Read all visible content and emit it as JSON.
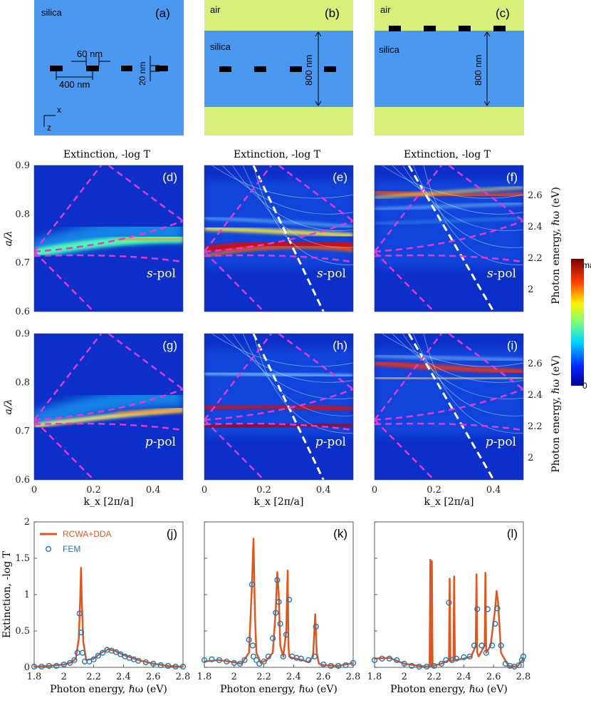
{
  "colors": {
    "silica": "#4a98f0",
    "air": "#d6f07a",
    "particle": "#000000",
    "map_bg": "#0b2fc8",
    "dash_magenta": "#e23ad6",
    "dash_white": "#ffffff",
    "rcwa": "#e0561f",
    "fem": "#1f77b4"
  },
  "schematics": {
    "a": {
      "label": "(a)",
      "medium": "silica",
      "dim_period": "400 nm",
      "dim_width": "60 nm",
      "dim_height": "20 nm",
      "axis_x": "x",
      "axis_z": "z"
    },
    "b": {
      "label": "(b)",
      "top": "air",
      "middle": "silica",
      "thickness": "800 nm"
    },
    "c": {
      "label": "(c)",
      "top": "air",
      "middle": "silica",
      "thickness": "800 nm"
    }
  },
  "maps": {
    "title": "Extinction, -log T",
    "ylabel": "a/λ",
    "xlabel": "k_x [2π/a]",
    "right_ylabel": "Photon energy, ℏω (eV)",
    "x_ticks": [
      "0",
      "0.2",
      "0.4"
    ],
    "y_ticks": [
      "0.6",
      "0.7",
      "0.8",
      "0.9"
    ],
    "energy_ticks": [
      "2",
      "2.2",
      "2.4",
      "2.6"
    ],
    "panels": [
      {
        "label": "(d)",
        "pol": "s-pol"
      },
      {
        "label": "(e)",
        "pol": "s-pol"
      },
      {
        "label": "(f)",
        "pol": "s-pol"
      },
      {
        "label": "(g)",
        "pol": "p-pol"
      },
      {
        "label": "(h)",
        "pol": "p-pol"
      },
      {
        "label": "(i)",
        "pol": "p-pol"
      }
    ],
    "colorbar": {
      "max": "max",
      "min": "0"
    }
  },
  "chart_data": [
    {
      "type": "line",
      "panel": "(j)",
      "xlabel": "Photon energy, ℏω (eV)",
      "ylabel": "Extinction, -log T",
      "xlim": [
        1.8,
        2.8
      ],
      "ylim": [
        0,
        2
      ],
      "x_ticks": [
        "1.8",
        "2",
        "2.2",
        "2.4",
        "2.6",
        "2.8"
      ],
      "y_ticks": [
        "0",
        "0.5",
        "1",
        "1.5",
        "2"
      ],
      "legend": [
        "RCWA+DDA",
        "FEM"
      ],
      "series": [
        {
          "name": "RCWA+DDA",
          "x": [
            1.8,
            1.9,
            2.0,
            2.05,
            2.08,
            2.1,
            2.11,
            2.115,
            2.12,
            2.13,
            2.15,
            2.2,
            2.25,
            2.3,
            2.35,
            2.4,
            2.5,
            2.6,
            2.7,
            2.8
          ],
          "y": [
            0.01,
            0.02,
            0.04,
            0.07,
            0.12,
            0.4,
            1.0,
            1.37,
            0.9,
            0.35,
            0.1,
            0.12,
            0.2,
            0.25,
            0.22,
            0.17,
            0.1,
            0.05,
            0.02,
            0.01
          ]
        },
        {
          "name": "FEM",
          "x": [
            1.8,
            1.85,
            1.9,
            1.95,
            2.0,
            2.04,
            2.07,
            2.09,
            2.105,
            2.115,
            2.125,
            2.14,
            2.17,
            2.2,
            2.23,
            2.26,
            2.29,
            2.32,
            2.35,
            2.38,
            2.41,
            2.44,
            2.47,
            2.5,
            2.55,
            2.6,
            2.65,
            2.7,
            2.75,
            2.8
          ],
          "y": [
            0.01,
            0.01,
            0.02,
            0.02,
            0.04,
            0.06,
            0.1,
            0.2,
            0.74,
            0.48,
            0.2,
            0.08,
            0.08,
            0.11,
            0.16,
            0.2,
            0.24,
            0.23,
            0.21,
            0.18,
            0.15,
            0.13,
            0.11,
            0.09,
            0.07,
            0.05,
            0.03,
            0.02,
            0.01,
            0.01
          ]
        }
      ]
    },
    {
      "type": "line",
      "panel": "(k)",
      "xlabel": "Photon energy, ℏω (eV)",
      "xlim": [
        1.8,
        2.8
      ],
      "ylim": [
        0,
        2
      ],
      "x_ticks": [
        "1.8",
        "2",
        "2.2",
        "2.4",
        "2.6",
        "2.8"
      ],
      "series": [
        {
          "name": "RCWA+DDA",
          "x": [
            1.8,
            1.9,
            2.0,
            2.05,
            2.1,
            2.12,
            2.13,
            2.14,
            2.15,
            2.18,
            2.22,
            2.26,
            2.28,
            2.29,
            2.3,
            2.31,
            2.33,
            2.35,
            2.36,
            2.365,
            2.37,
            2.39,
            2.42,
            2.46,
            2.5,
            2.53,
            2.545,
            2.555,
            2.57,
            2.6,
            2.7,
            2.8
          ],
          "y": [
            0.08,
            0.1,
            0.07,
            0.05,
            0.2,
            1.15,
            1.77,
            0.7,
            0.2,
            0.06,
            0.1,
            0.2,
            0.8,
            1.31,
            1.0,
            0.3,
            0.15,
            0.5,
            1.33,
            0.3,
            0.15,
            0.13,
            0.12,
            0.1,
            0.07,
            0.15,
            0.73,
            0.2,
            0.05,
            0.03,
            0.02,
            0.06
          ]
        },
        {
          "name": "FEM",
          "x": [
            1.8,
            1.85,
            1.9,
            1.95,
            2.0,
            2.04,
            2.07,
            2.1,
            2.12,
            2.125,
            2.13,
            2.15,
            2.17,
            2.2,
            2.23,
            2.26,
            2.28,
            2.29,
            2.3,
            2.31,
            2.33,
            2.35,
            2.37,
            2.39,
            2.42,
            2.45,
            2.5,
            2.54,
            2.55,
            2.6,
            2.65,
            2.7,
            2.75,
            2.8
          ],
          "y": [
            0.1,
            0.11,
            0.1,
            0.08,
            0.06,
            0.05,
            0.1,
            0.38,
            1.14,
            0.3,
            0.15,
            0.1,
            0.05,
            0.08,
            0.15,
            0.4,
            0.75,
            1.2,
            0.9,
            0.6,
            0.15,
            0.45,
            0.93,
            0.15,
            0.13,
            0.12,
            0.1,
            0.15,
            0.56,
            0.04,
            0.02,
            0.02,
            0.03,
            0.06
          ]
        }
      ]
    },
    {
      "type": "line",
      "panel": "(l)",
      "xlabel": "Photon energy, ℏω (eV)",
      "xlim": [
        1.8,
        2.8
      ],
      "ylim": [
        0,
        2
      ],
      "x_ticks": [
        "1.8",
        "2",
        "2.2",
        "2.4",
        "2.6",
        "2.8"
      ],
      "series": [
        {
          "name": "RCWA+DDA",
          "x": [
            1.8,
            1.9,
            2.0,
            2.1,
            2.17,
            2.175,
            2.18,
            2.185,
            2.19,
            2.25,
            2.3,
            2.305,
            2.31,
            2.33,
            2.335,
            2.34,
            2.4,
            2.45,
            2.48,
            2.485,
            2.49,
            2.5,
            2.54,
            2.545,
            2.55,
            2.58,
            2.61,
            2.62,
            2.63,
            2.65,
            2.7,
            2.76,
            2.8
          ],
          "y": [
            0.12,
            0.13,
            0.05,
            0.02,
            0.01,
            1.48,
            0.02,
            1.46,
            0.02,
            0.05,
            0.1,
            1.22,
            0.08,
            0.1,
            1.25,
            0.1,
            0.12,
            0.15,
            0.3,
            1.28,
            0.2,
            0.15,
            0.3,
            1.3,
            0.2,
            0.3,
            0.8,
            1.05,
            0.9,
            0.2,
            0.02,
            0.01,
            0.12
          ]
        },
        {
          "name": "FEM",
          "x": [
            1.8,
            1.85,
            1.9,
            1.95,
            2.0,
            2.05,
            2.1,
            2.15,
            2.2,
            2.25,
            2.28,
            2.3,
            2.32,
            2.35,
            2.4,
            2.44,
            2.47,
            2.49,
            2.52,
            2.55,
            2.56,
            2.59,
            2.61,
            2.625,
            2.65,
            2.68,
            2.71,
            2.74,
            2.77,
            2.79,
            2.8
          ],
          "y": [
            0.1,
            0.12,
            0.12,
            0.1,
            0.05,
            0.02,
            0.01,
            0.01,
            0.02,
            0.05,
            0.1,
            0.89,
            0.1,
            0.12,
            0.14,
            0.15,
            0.3,
            0.8,
            0.3,
            0.2,
            0.8,
            0.3,
            0.6,
            0.81,
            0.3,
            0.05,
            0.02,
            0.01,
            0.03,
            0.1,
            0.15
          ]
        }
      ]
    }
  ]
}
